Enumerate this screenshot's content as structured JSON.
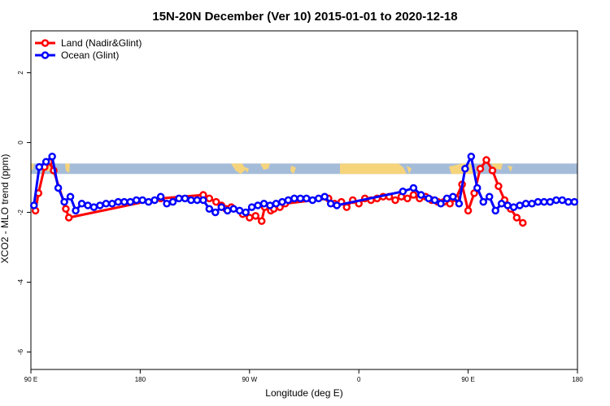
{
  "chart_data": {
    "type": "line",
    "title": "15N-20N December (Ver 10)   2015-01-01 to 2020-12-18",
    "xlabel": "Longitude (deg E)",
    "ylabel": "XCO2 - MLO trend (ppm)",
    "xlim": [
      90,
      450
    ],
    "ylim": [
      -6.5,
      3.2
    ],
    "x_ticks": [
      {
        "value": 90,
        "label": "90 E"
      },
      {
        "value": 162,
        "label": "180"
      },
      {
        "value": 234,
        "label": "90 W"
      },
      {
        "value": 306,
        "label": "0"
      },
      {
        "value": 378,
        "label": "90 E"
      },
      {
        "value": 450,
        "label": "180"
      }
    ],
    "y_ticks": [
      {
        "value": 2,
        "label": "2"
      },
      {
        "value": 0,
        "label": "0"
      },
      {
        "value": -2,
        "label": "-2"
      },
      {
        "value": -4,
        "label": "-4"
      },
      {
        "value": -6,
        "label": "-6"
      }
    ],
    "land_band": {
      "ymin": -0.9,
      "ymax": -0.6,
      "ocean_color": "#a5bcd9",
      "land_color": "#f6d47c"
    },
    "legend_position": "top-left",
    "series": [
      {
        "name": "Land (Nadir&Glint)",
        "color": "#ff0000",
        "x": [
          93,
          95,
          99,
          102,
          105,
          113,
          115,
          175.5,
          203.5,
          207.5,
          212,
          215.5,
          218.5,
          222,
          229.5,
          234,
          238,
          242,
          244,
          248,
          250,
          254,
          257.5,
          286,
          290,
          294.5,
          298,
          302,
          306,
          310,
          314,
          318,
          322,
          326,
          330,
          334,
          338,
          342,
          346,
          350,
          354,
          358,
          362,
          366,
          370,
          374,
          378,
          382,
          386,
          390,
          394,
          398,
          402,
          406,
          410,
          414
        ],
        "y": [
          -1.95,
          -1.45,
          -0.7,
          -0.55,
          -0.8,
          -1.9,
          -2.15,
          -1.6,
          -1.5,
          -1.6,
          -1.7,
          -1.8,
          -1.9,
          -1.85,
          -2.05,
          -2.15,
          -2.1,
          -2.25,
          -1.85,
          -1.95,
          -1.9,
          -1.85,
          -1.75,
          -1.6,
          -1.75,
          -1.7,
          -1.85,
          -1.65,
          -1.75,
          -1.6,
          -1.65,
          -1.6,
          -1.55,
          -1.55,
          -1.65,
          -1.55,
          -1.6,
          -1.5,
          -1.6,
          -1.55,
          -1.65,
          -1.7,
          -1.7,
          -1.75,
          -1.6,
          -1.2,
          -1.95,
          -1.45,
          -0.75,
          -0.5,
          -0.8,
          -1.25,
          -1.65,
          -1.9,
          -2.15,
          -2.3
        ]
      },
      {
        "name": "Ocean (Glint)",
        "color": "#0000ff",
        "x": [
          92,
          95.5,
          100,
          104,
          108,
          112,
          116,
          119.5,
          123.5,
          127.5,
          131.5,
          135.5,
          139.5,
          143.5,
          147.5,
          151.5,
          155.5,
          159.5,
          163.5,
          167.5,
          171.5,
          175.5,
          179.5,
          183.5,
          187.5,
          191.5,
          195.5,
          199.5,
          203.5,
          207.5,
          211.5,
          215.5,
          219.5,
          223.5,
          227.5,
          231.5,
          235.5,
          239.5,
          243.5,
          247.5,
          251.5,
          255.5,
          259.5,
          263.5,
          267.5,
          271.5,
          275.5,
          279.5,
          283.5,
          287.5,
          291.5,
          335,
          342,
          347,
          352,
          356,
          360,
          364,
          368,
          372,
          376,
          380,
          384,
          388,
          392,
          396,
          400,
          404,
          408,
          412,
          416,
          420,
          424,
          428,
          432,
          436,
          440,
          444,
          448
        ],
        "y": [
          -1.8,
          -0.7,
          -0.55,
          -0.4,
          -1.3,
          -1.7,
          -1.55,
          -1.95,
          -1.75,
          -1.8,
          -1.85,
          -1.8,
          -1.75,
          -1.75,
          -1.7,
          -1.7,
          -1.7,
          -1.65,
          -1.65,
          -1.7,
          -1.65,
          -1.55,
          -1.75,
          -1.7,
          -1.6,
          -1.6,
          -1.65,
          -1.65,
          -1.65,
          -1.9,
          -2.0,
          -1.85,
          -1.95,
          -1.9,
          -1.95,
          -2.0,
          -1.85,
          -1.8,
          -1.75,
          -1.8,
          -1.75,
          -1.7,
          -1.65,
          -1.6,
          -1.6,
          -1.6,
          -1.65,
          -1.6,
          -1.55,
          -1.75,
          -1.8,
          -1.4,
          -1.3,
          -1.5,
          -1.6,
          -1.65,
          -1.75,
          -1.6,
          -1.55,
          -1.75,
          -0.75,
          -0.4,
          -1.3,
          -1.7,
          -1.55,
          -1.95,
          -1.75,
          -1.8,
          -1.85,
          -1.8,
          -1.75,
          -1.75,
          -1.7,
          -1.7,
          -1.7,
          -1.65,
          -1.65,
          -1.7,
          -1.7
        ]
      }
    ]
  }
}
